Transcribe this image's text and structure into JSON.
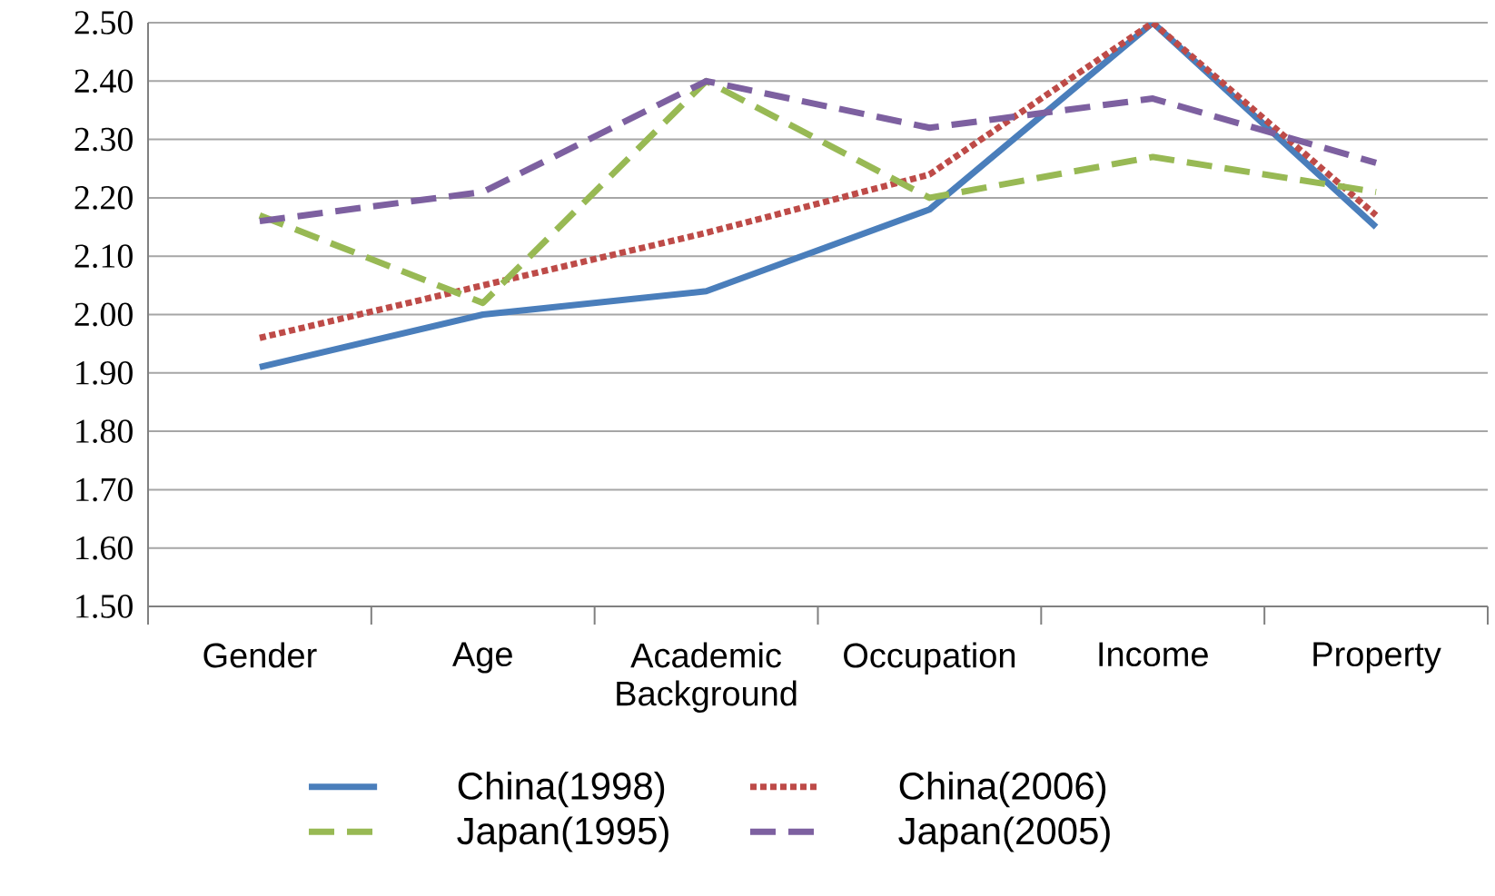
{
  "chart_data": {
    "type": "line",
    "categories": [
      "Gender",
      "Age",
      "Academic Background",
      "Occupation",
      "Income",
      "Property"
    ],
    "series": [
      {
        "name": "China(1998)",
        "color": "#4a7ebb",
        "line_style": "solid",
        "values": [
          1.91,
          2.0,
          2.04,
          2.18,
          2.5,
          2.15
        ]
      },
      {
        "name": "China(2006)",
        "color": "#be4b48",
        "line_style": "dotted",
        "values": [
          1.96,
          2.05,
          2.14,
          2.24,
          2.5,
          2.17
        ]
      },
      {
        "name": "Japan(1995)",
        "color": "#98b954",
        "line_style": "dashed",
        "values": [
          2.17,
          2.02,
          2.4,
          2.2,
          2.27,
          2.21
        ]
      },
      {
        "name": "Japan(2005)",
        "color": "#7d60a0",
        "line_style": "dashed",
        "values": [
          2.16,
          2.21,
          2.4,
          2.32,
          2.37,
          2.26
        ]
      }
    ],
    "ylim": [
      1.5,
      2.5
    ],
    "yticks": [
      {
        "value": 1.5,
        "label": "1.50"
      },
      {
        "value": 1.6,
        "label": "1.60"
      },
      {
        "value": 1.7,
        "label": "1.70"
      },
      {
        "value": 1.8,
        "label": "1.80"
      },
      {
        "value": 1.9,
        "label": "1.90"
      },
      {
        "value": 2.0,
        "label": "2.00"
      },
      {
        "value": 2.1,
        "label": "2.10"
      },
      {
        "value": 2.2,
        "label": "2.20"
      },
      {
        "value": 2.3,
        "label": "2.30"
      },
      {
        "value": 2.4,
        "label": "2.40"
      },
      {
        "value": 2.5,
        "label": "2.50"
      }
    ],
    "grid": "y",
    "legend": "bottom",
    "marker": "none"
  }
}
